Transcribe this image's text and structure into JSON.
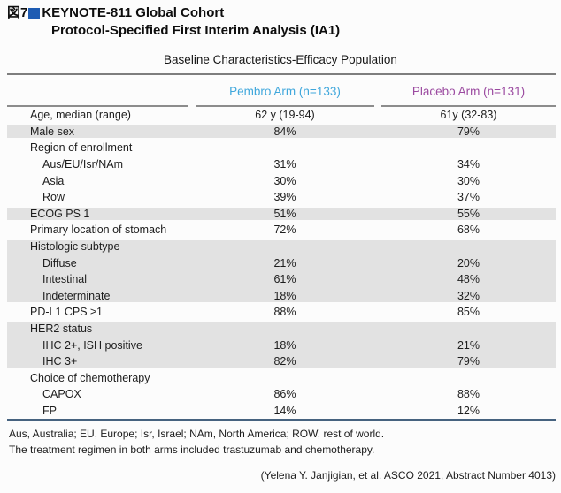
{
  "header": {
    "figure_label": "図7",
    "title_line1": "KEYNOTE-811 Global Cohort",
    "title_line2": "Protocol-Specified First Interim Analysis (IA1)"
  },
  "table": {
    "title": "Baseline Characteristics-Efficacy Population",
    "columns": {
      "pembro": "Pembro Arm (n=133)",
      "placebo": "Placebo Arm (n=131)"
    },
    "rows": [
      {
        "label": "Age, median (range)",
        "pembro": "62 y (19-94)",
        "placebo": "61y (32-83)",
        "shade": false,
        "indent": false
      },
      {
        "label": "Male sex",
        "pembro": "84%",
        "placebo": "79%",
        "shade": true,
        "indent": false
      },
      {
        "label": "Region of enrollment",
        "pembro": "",
        "placebo": "",
        "shade": false,
        "indent": false
      },
      {
        "label": "Aus/EU/Isr/NAm",
        "pembro": "31%",
        "placebo": "34%",
        "shade": false,
        "indent": true
      },
      {
        "label": "Asia",
        "pembro": "30%",
        "placebo": "30%",
        "shade": false,
        "indent": true
      },
      {
        "label": "Row",
        "pembro": "39%",
        "placebo": "37%",
        "shade": false,
        "indent": true
      },
      {
        "label": "ECOG PS 1",
        "pembro": "51%",
        "placebo": "55%",
        "shade": true,
        "indent": false
      },
      {
        "label": "Primary location of stomach",
        "pembro": "72%",
        "placebo": "68%",
        "shade": false,
        "indent": false
      },
      {
        "label": "Histologic subtype",
        "pembro": "",
        "placebo": "",
        "shade": true,
        "indent": false
      },
      {
        "label": "Diffuse",
        "pembro": "21%",
        "placebo": "20%",
        "shade": true,
        "indent": true
      },
      {
        "label": "Intestinal",
        "pembro": "61%",
        "placebo": "48%",
        "shade": true,
        "indent": true
      },
      {
        "label": "Indeterminate",
        "pembro": "18%",
        "placebo": "32%",
        "shade": true,
        "indent": true
      },
      {
        "label": "PD-L1 CPS ≥1",
        "pembro": "88%",
        "placebo": "85%",
        "shade": false,
        "indent": false
      },
      {
        "label": "HER2 status",
        "pembro": "",
        "placebo": "",
        "shade": true,
        "indent": false
      },
      {
        "label": "IHC 2+, ISH positive",
        "pembro": "18%",
        "placebo": "21%",
        "shade": true,
        "indent": true
      },
      {
        "label": "IHC 3+",
        "pembro": "82%",
        "placebo": "79%",
        "shade": true,
        "indent": true
      },
      {
        "label": "Choice of chemotherapy",
        "pembro": "",
        "placebo": "",
        "shade": false,
        "indent": false
      },
      {
        "label": "CAPOX",
        "pembro": "86%",
        "placebo": "88%",
        "shade": false,
        "indent": true
      },
      {
        "label": "FP",
        "pembro": "14%",
        "placebo": "12%",
        "shade": false,
        "indent": true
      }
    ]
  },
  "footer": {
    "note1": "Aus, Australia; EU, Europe; Isr, Israel; NAm, North America; ROW, rest of world.",
    "note2": "The treatment regimen in both arms included trastuzumab and chemotherapy.",
    "citation": "(Yelena Y. Janjigian, et al. ASCO 2021, Abstract Number 4013)"
  },
  "colors": {
    "accent_square": "#1e5cb3",
    "pembro_header": "#3fa7dc",
    "placebo_header": "#9b4aa0",
    "shaded_row": "#e2e2e2",
    "bottom_rule": "#46627f"
  }
}
